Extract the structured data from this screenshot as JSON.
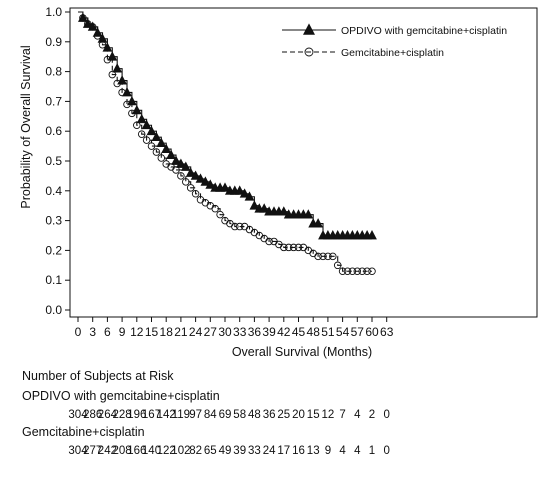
{
  "chart_data": {
    "type": "line",
    "xlabel": "Overall Survival (Months)",
    "ylabel": "Probability of Overall Survival",
    "xlim": [
      0,
      63
    ],
    "ylim": [
      0.0,
      1.0
    ],
    "x_ticks": [
      "0",
      "3",
      "6",
      "9",
      "12",
      "15",
      "18",
      "21",
      "24",
      "27",
      "30",
      "33",
      "36",
      "39",
      "42",
      "45",
      "48",
      "51",
      "54",
      "57",
      "60",
      "63"
    ],
    "y_ticks": [
      "0.0",
      "0.1",
      "0.2",
      "0.3",
      "0.4",
      "0.5",
      "0.6",
      "0.7",
      "0.8",
      "0.9",
      "1.0"
    ],
    "legend_position": "top-right",
    "series": [
      {
        "name": "OPDIVO with gemcitabine+cisplatin",
        "marker": "triangle",
        "line_style": "solid",
        "x": [
          0,
          1,
          2,
          3,
          4,
          5,
          6,
          7,
          8,
          9,
          10,
          11,
          12,
          13,
          14,
          15,
          16,
          17,
          18,
          19,
          20,
          21,
          22,
          23,
          24,
          25,
          26,
          27,
          28,
          29,
          30,
          31,
          32,
          33,
          34,
          35,
          36,
          37,
          38,
          39,
          40,
          41,
          42,
          43,
          44,
          45,
          46,
          47,
          48,
          49,
          50,
          51,
          52,
          53,
          54,
          55,
          56,
          57,
          58,
          59,
          60
        ],
        "y": [
          1.0,
          0.98,
          0.96,
          0.95,
          0.93,
          0.91,
          0.88,
          0.85,
          0.81,
          0.77,
          0.73,
          0.7,
          0.67,
          0.64,
          0.62,
          0.6,
          0.58,
          0.56,
          0.54,
          0.52,
          0.5,
          0.49,
          0.48,
          0.46,
          0.45,
          0.44,
          0.43,
          0.42,
          0.41,
          0.41,
          0.41,
          0.4,
          0.4,
          0.4,
          0.39,
          0.38,
          0.35,
          0.34,
          0.34,
          0.33,
          0.33,
          0.33,
          0.33,
          0.32,
          0.32,
          0.32,
          0.32,
          0.32,
          0.29,
          0.29,
          0.25,
          0.25,
          0.25,
          0.25,
          0.25,
          0.25,
          0.25,
          0.25,
          0.25,
          0.25,
          0.25
        ]
      },
      {
        "name": "Gemcitabine+cisplatin",
        "marker": "circle",
        "line_style": "dashed",
        "x": [
          0,
          1,
          2,
          3,
          4,
          5,
          6,
          7,
          8,
          9,
          10,
          11,
          12,
          13,
          14,
          15,
          16,
          17,
          18,
          19,
          20,
          21,
          22,
          23,
          24,
          25,
          26,
          27,
          28,
          29,
          30,
          31,
          32,
          33,
          34,
          35,
          36,
          37,
          38,
          39,
          40,
          41,
          42,
          43,
          44,
          45,
          46,
          47,
          48,
          49,
          50,
          51,
          52,
          53,
          54,
          55,
          56,
          57,
          58,
          59,
          60
        ],
        "y": [
          1.0,
          0.98,
          0.96,
          0.95,
          0.92,
          0.89,
          0.84,
          0.79,
          0.76,
          0.73,
          0.69,
          0.66,
          0.62,
          0.59,
          0.57,
          0.55,
          0.53,
          0.51,
          0.49,
          0.48,
          0.47,
          0.45,
          0.43,
          0.41,
          0.39,
          0.37,
          0.36,
          0.35,
          0.34,
          0.32,
          0.3,
          0.29,
          0.28,
          0.28,
          0.28,
          0.27,
          0.26,
          0.25,
          0.24,
          0.23,
          0.23,
          0.22,
          0.21,
          0.21,
          0.21,
          0.21,
          0.21,
          0.2,
          0.19,
          0.18,
          0.18,
          0.18,
          0.18,
          0.15,
          0.13,
          0.13,
          0.13,
          0.13,
          0.13,
          0.13,
          0.13
        ]
      }
    ]
  },
  "risk_table": {
    "title": "Number of Subjects at Risk",
    "rows": [
      {
        "label": "OPDIVO with gemcitabine+cisplatin",
        "values": [
          "304",
          "286",
          "264",
          "228",
          "196",
          "167",
          "142",
          "119",
          "97",
          "84",
          "69",
          "58",
          "48",
          "36",
          "25",
          "20",
          "15",
          "12",
          "7",
          "4",
          "2",
          "0"
        ]
      },
      {
        "label": "Gemcitabine+cisplatin",
        "values": [
          "304",
          "277",
          "242",
          "208",
          "166",
          "140",
          "122",
          "102",
          "82",
          "65",
          "49",
          "39",
          "33",
          "24",
          "17",
          "16",
          "13",
          "9",
          "4",
          "4",
          "1",
          "0"
        ]
      }
    ]
  }
}
